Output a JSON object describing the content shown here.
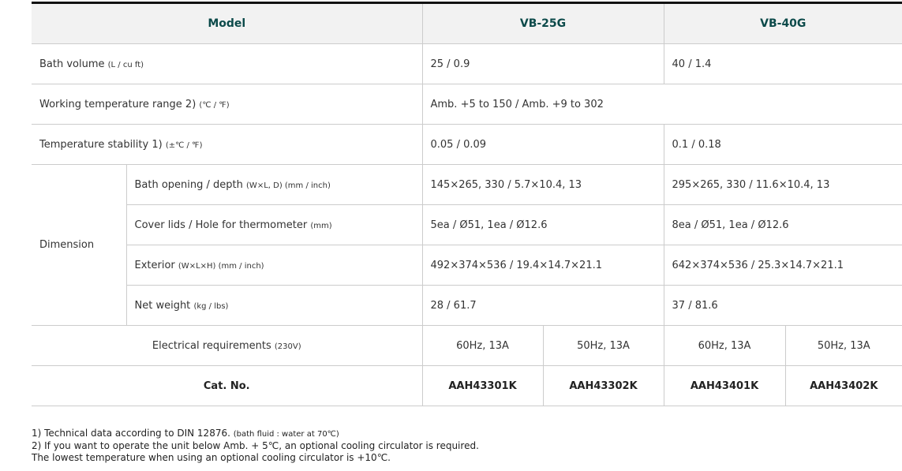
{
  "header": {
    "model": "Model",
    "vb25": "VB-25G",
    "vb40": "VB-40G"
  },
  "rows": {
    "bath_volume": {
      "label": "Bath volume",
      "unit": "(L / cu ft)",
      "vb25": "25 / 0.9",
      "vb40": "40 / 1.4"
    },
    "working_temp": {
      "label": "Working temperature range 2)",
      "unit": "(℃ / ℉)",
      "value": "Amb. +5 to 150 / Amb. +9 to 302"
    },
    "stability": {
      "label": "Temperature stability 1)",
      "unit": "(±℃ / ℉)",
      "vb25": "0.05 / 0.09",
      "vb40": "0.1 / 0.18"
    },
    "dimension": {
      "label": "Dimension",
      "opening": {
        "label": "Bath opening / depth",
        "unit": "(W×L, D) (mm / inch)",
        "vb25": "145×265, 330 / 5.7×10.4, 13",
        "vb40": "295×265, 330 / 11.6×10.4, 13"
      },
      "lids": {
        "label": "Cover lids / Hole for thermometer",
        "unit": "(mm)",
        "vb25": "5ea / Ø51, 1ea / Ø12.6",
        "vb40": "8ea / Ø51, 1ea / Ø12.6"
      },
      "exterior": {
        "label": "Exterior",
        "unit": "(W×L×H) (mm / inch)",
        "vb25": "492×374×536 / 19.4×14.7×21.1",
        "vb40": "642×374×536 / 25.3×14.7×21.1"
      },
      "weight": {
        "label": "Net weight",
        "unit": "(kg / lbs)",
        "vb25": "28 / 61.7",
        "vb40": "37 / 81.6"
      }
    },
    "electrical": {
      "label": "Electrical requirements",
      "unit": "(230V)",
      "values": [
        "60Hz, 13A",
        "50Hz, 13A",
        "60Hz, 13A",
        "50Hz, 13A"
      ]
    },
    "cat": {
      "label": "Cat. No.",
      "values": [
        "AAH43301K",
        "AAH43302K",
        "AAH43401K",
        "AAH43402K"
      ]
    }
  },
  "notes": [
    "1) Technical data according to DIN 12876.",
    "(bath fluid : water at 70℃)",
    "2) If you want to operate the unit below Amb. + 5℃, an optional cooling circulator is required.",
    "The lowest temperature when using an optional cooling circulator is +10℃."
  ]
}
